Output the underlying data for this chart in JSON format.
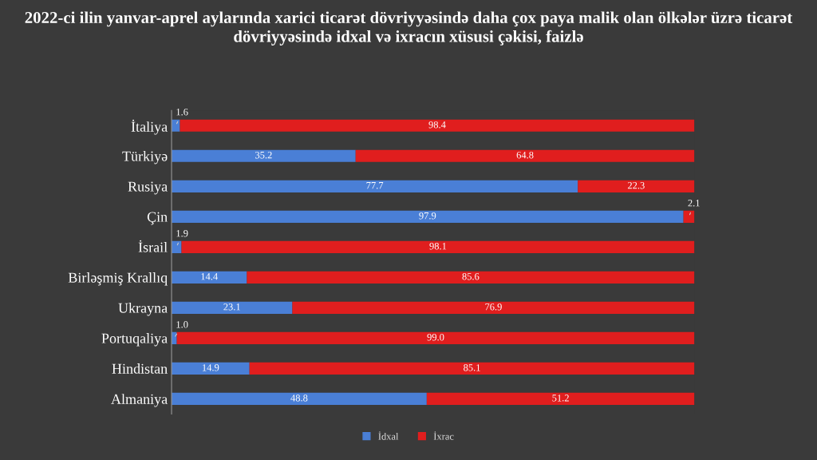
{
  "chart_data": {
    "type": "bar",
    "orientation": "horizontal",
    "stacked": true,
    "title": "2022-ci ilin yanvar-aprel aylarında xarici ticarət dövriyyəsində daha çox paya malik olan ölkələr üzrə ticarət dövriyyəsində idxal və ixracın xüsusi çəkisi, faizlə",
    "categories": [
      "İtaliya",
      "Türkiyə",
      "Rusiya",
      "Çin",
      "İsrail",
      "Birləşmiş Krallıq",
      "Ukrayna",
      "Portuqaliya",
      "Hindistan",
      "Almaniya"
    ],
    "series": [
      {
        "name": "İdxal",
        "color": "#4a7fd6",
        "values": [
          1.6,
          35.2,
          77.7,
          97.9,
          1.9,
          14.4,
          23.1,
          1.0,
          14.9,
          48.8
        ],
        "value_labels": [
          "1.6",
          "35.2",
          "77.7",
          "97.9",
          "1.9",
          "14.4",
          "23.1",
          "1.0",
          "14.9",
          "48.8"
        ]
      },
      {
        "name": "İxrac",
        "color": "#e01e1e",
        "values": [
          98.4,
          64.8,
          22.3,
          2.1,
          98.1,
          85.6,
          76.9,
          99.0,
          85.1,
          51.2
        ],
        "value_labels": [
          "98.4",
          "64.8",
          "22.3",
          "2.1",
          "98.1",
          "85.6",
          "76.9",
          "99.0",
          "85.1",
          "51.2"
        ]
      }
    ],
    "legend": "bottom",
    "grid": false,
    "tick_labels": "y"
  }
}
